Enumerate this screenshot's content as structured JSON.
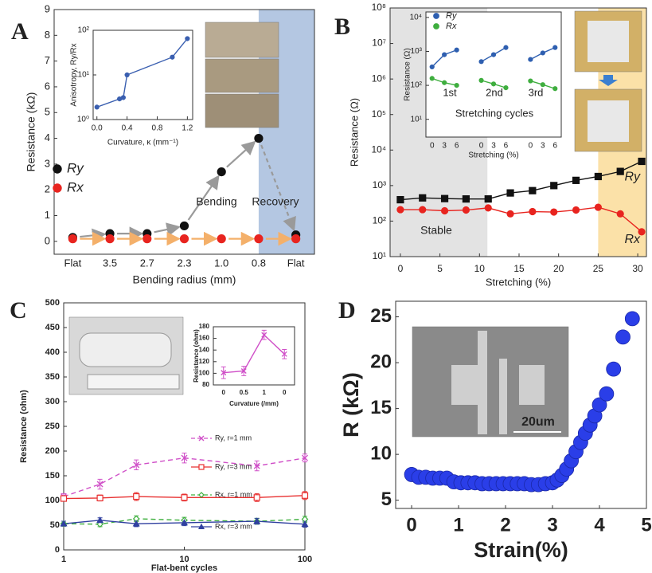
{
  "chart_data": [
    {
      "type": "line",
      "panel_label": "A",
      "xlabel": "Bending radius (mm)",
      "ylabel": "Resistance (kΩ)",
      "categories": [
        "Flat",
        "3.5",
        "2.7",
        "2.3",
        "1.0",
        "0.8",
        "Flat"
      ],
      "ylim": [
        -0.5,
        9
      ],
      "yticks": [
        0,
        1,
        2,
        3,
        4,
        5,
        6,
        7,
        8,
        9
      ],
      "series": [
        {
          "name": "Ry",
          "color": "#111111",
          "marker": "circle",
          "line": false,
          "values": [
            0.15,
            0.3,
            0.3,
            0.6,
            2.7,
            4.0,
            0.25
          ]
        },
        {
          "name": "Rx",
          "color": "#e8241f",
          "marker": "circle",
          "line": false,
          "values": [
            0.1,
            0.1,
            0.1,
            0.1,
            0.1,
            0.1,
            0.1
          ]
        }
      ],
      "shaded_regions": [
        {
          "xrange": [
            5,
            6.5
          ],
          "color": "#b4c7e2"
        }
      ],
      "annotations": [
        "Bending",
        "Recovery"
      ],
      "inset": {
        "type": "line",
        "xlabel": "Curvature, κ (mm⁻¹)",
        "ylabel": "Anisotropy, Ry/Rx",
        "x": [
          0,
          0.3,
          0.35,
          0.4,
          1.0,
          1.2
        ],
        "xlim": [
          -0.05,
          1.27
        ],
        "xticks": [
          {
            "value": 0,
            "label": "0.0"
          },
          0.4,
          0.8,
          1.2
        ],
        "ylog": true,
        "ylim": [
          1,
          100
        ],
        "yticks": [
          {
            "value": 1,
            "label": "10⁰"
          },
          {
            "value": 10,
            "label": "10¹"
          },
          {
            "value": 100,
            "label": "10²"
          }
        ],
        "series": [
          {
            "color": "#3a5fb0",
            "marker": "circle",
            "values": [
              1.9,
              2.9,
              3.1,
              10,
              25,
              65
            ]
          }
        ]
      }
    },
    {
      "type": "line",
      "panel_label": "B",
      "xlabel": "Stretching (%)",
      "ylabel": "Resistance (Ω)",
      "x": [
        0,
        2.8,
        5.6,
        8.3,
        11.1,
        13.9,
        16.7,
        19.4,
        22.2,
        25,
        27.8,
        30.5
      ],
      "xlim": [
        -1.3,
        31.1
      ],
      "xticks": [
        0,
        5,
        10,
        15,
        20,
        25,
        30
      ],
      "ylog": true,
      "ylim": [
        10,
        100000000
      ],
      "yticks": [
        {
          "value": 10,
          "label": "10¹"
        },
        {
          "value": 100,
          "label": "10²"
        },
        {
          "value": 1000,
          "label": "10³"
        },
        {
          "value": 10000,
          "label": "10⁴"
        },
        {
          "value": 100000,
          "label": "10⁵"
        },
        {
          "value": 1000000,
          "label": "10⁶"
        },
        {
          "value": 10000000,
          "label": "10⁷"
        },
        {
          "value": 100000000,
          "label": "10⁸"
        }
      ],
      "series": [
        {
          "name": "Ry",
          "color": "#111111",
          "marker": "square",
          "values": [
            400,
            450,
            430,
            420,
            420,
            620,
            720,
            1000,
            1400,
            1800,
            2500,
            4800
          ]
        },
        {
          "name": "Rx",
          "color": "#e8241f",
          "marker": "circle",
          "values": [
            210,
            210,
            195,
            205,
            235,
            160,
            185,
            180,
            205,
            245,
            160,
            50
          ]
        }
      ],
      "shaded_regions": [
        {
          "xrange": [
            -1.3,
            11
          ],
          "color": "#e3e3e3"
        },
        {
          "xrange": [
            25,
            31.1
          ],
          "color": "#fbe1a8"
        }
      ],
      "annotations": [
        "Stable"
      ],
      "inset": {
        "type": "line",
        "xlabel": "Stretching (%)",
        "ylabel": "Resistance (Ω)",
        "categories": [
          "0",
          "3",
          "6",
          null,
          "0",
          "3",
          "6",
          null,
          "0",
          "3",
          "6"
        ],
        "ylog": true,
        "ylim": [
          3,
          14500
        ],
        "yticks": [
          {
            "value": 10,
            "label": "10¹"
          },
          {
            "value": 100,
            "label": "10²"
          },
          {
            "value": 1000,
            "label": "10³"
          },
          {
            "value": 10000,
            "label": "10⁴"
          }
        ],
        "series": [
          {
            "name": "Ry",
            "color": "#2e5fb0",
            "marker": "circle",
            "values": [
              350,
              800,
              1100,
              null,
              500,
              800,
              1300,
              null,
              580,
              900,
              1300
            ]
          },
          {
            "name": "Rx",
            "color": "#3fae3f",
            "marker": "circle",
            "values": [
              160,
              120,
              100,
              null,
              140,
              110,
              85,
              null,
              135,
              105,
              80
            ]
          }
        ],
        "annotations": [
          "1st",
          "2nd",
          "3rd",
          "Stretching cycles"
        ]
      }
    },
    {
      "type": "line",
      "panel_label": "C",
      "xlabel": "Flat-bent cycles",
      "ylabel": "Resistance (ohm)",
      "x": [
        1,
        2,
        4,
        10,
        40,
        100
      ],
      "xlog": true,
      "xlim": [
        1,
        100
      ],
      "xticks": [
        1,
        10,
        100
      ],
      "ylim": [
        0,
        500
      ],
      "yticks": [
        0,
        50,
        100,
        150,
        200,
        250,
        300,
        350,
        400,
        450,
        500
      ],
      "series": [
        {
          "name": "Ry, r=1 mm",
          "color": "#d050c8",
          "marker": "cross",
          "dash": true,
          "values": [
            108,
            133,
            172,
            186,
            170,
            186
          ],
          "errors": [
            6,
            10,
            10,
            10,
            10,
            8
          ]
        },
        {
          "name": "Ry, r=3 mm",
          "color": "#e83030",
          "marker": "square",
          "open": true,
          "values": [
            104,
            105,
            108,
            106,
            106,
            110
          ],
          "errors": [
            5,
            6,
            8,
            7,
            8,
            8
          ]
        },
        {
          "name": "Rx, r=1 mm",
          "color": "#40b040",
          "marker": "diamond",
          "open": true,
          "dash": true,
          "values": [
            53,
            52,
            63,
            60,
            58,
            62
          ],
          "errors": [
            5,
            5,
            6,
            6,
            6,
            6
          ]
        },
        {
          "name": "Rx, r=3 mm",
          "color": "#3040a0",
          "marker": "triangle",
          "values": [
            53,
            60,
            53,
            55,
            58,
            52
          ],
          "errors": [
            5,
            5,
            6,
            6,
            6,
            6
          ]
        }
      ],
      "inset": {
        "type": "line",
        "xlabel": "Curvature (/mm)",
        "ylabel": "Resistance (ohm)",
        "categories": [
          "0",
          "0.5",
          "1",
          "0"
        ],
        "ylim": [
          80,
          180
        ],
        "yticks": [
          80,
          100,
          120,
          140,
          160,
          180
        ],
        "series": [
          {
            "color": "#d050c8",
            "marker": "cross",
            "values": [
              101,
              104,
              166,
              133
            ],
            "errors": [
              10,
              8,
              8,
              8
            ]
          }
        ]
      }
    },
    {
      "type": "scatter",
      "panel_label": "D",
      "xlabel": "Strain(%)",
      "ylabel": "R (kΩ)",
      "x": [
        0,
        0.15,
        0.3,
        0.45,
        0.6,
        0.75,
        0.9,
        1.05,
        1.2,
        1.35,
        1.5,
        1.65,
        1.8,
        1.95,
        2.1,
        2.25,
        2.4,
        2.55,
        2.7,
        2.85,
        3.0,
        3.1,
        3.2,
        3.3,
        3.4,
        3.5,
        3.6,
        3.7,
        3.8,
        3.9,
        4.0,
        4.15,
        4.3,
        4.5,
        4.7
      ],
      "xlim": [
        -0.34,
        5
      ],
      "xticks": [
        0,
        1,
        2,
        3,
        4,
        5
      ],
      "ylim": [
        4.1,
        26.7
      ],
      "yticks": [
        5,
        10,
        15,
        20,
        25
      ],
      "series": [
        {
          "color": "#2a3ee8",
          "marker": "circle",
          "values": [
            7.8,
            7.5,
            7.5,
            7.4,
            7.4,
            7.4,
            7.0,
            6.9,
            6.9,
            6.9,
            6.8,
            6.8,
            6.8,
            6.8,
            6.8,
            6.8,
            6.8,
            6.7,
            6.7,
            6.8,
            6.9,
            7.2,
            7.7,
            8.4,
            9.3,
            10.3,
            11.3,
            12.3,
            13.2,
            14.2,
            15.4,
            16.6,
            19.3,
            22.8,
            24.8
          ]
        }
      ],
      "annotations": [
        "20um"
      ]
    }
  ]
}
